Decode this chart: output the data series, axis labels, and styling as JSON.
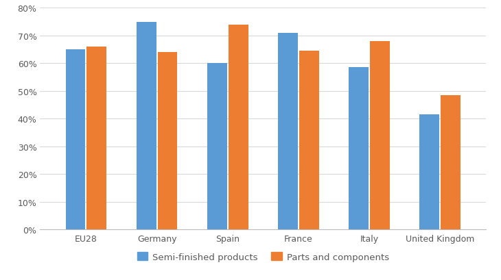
{
  "categories": [
    "EU28",
    "Germany",
    "Spain",
    "France",
    "Italy",
    "United Kingdom"
  ],
  "semi_finished": [
    65,
    75,
    60,
    71,
    58.5,
    41.5
  ],
  "parts_components": [
    66,
    64,
    74,
    64.5,
    68,
    48.5
  ],
  "bar_color_blue": "#5B9BD5",
  "bar_color_orange": "#ED7D31",
  "ylim": [
    0,
    80
  ],
  "yticks": [
    0,
    10,
    20,
    30,
    40,
    50,
    60,
    70,
    80
  ],
  "ytick_labels": [
    "0%",
    "10%",
    "20%",
    "30%",
    "40%",
    "50%",
    "60%",
    "70%",
    "80%"
  ],
  "legend_labels": [
    "Semi-finished products",
    "Parts and components"
  ],
  "bar_width": 0.28,
  "background_color": "#ffffff",
  "grid_color": "#d9d9d9",
  "tick_label_color": "#595959"
}
